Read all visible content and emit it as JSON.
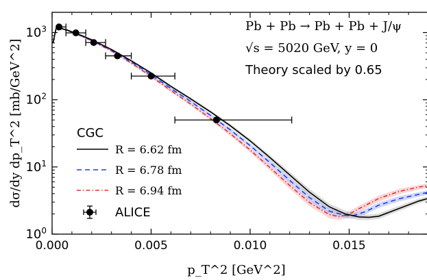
{
  "chart_data": {
    "type": "line",
    "title": "",
    "xlabel": "p_T^2 [GeV^2]",
    "ylabel": "dσ/dy dp_T^2 [mb/GeV^2]",
    "xlim": [
      0.0,
      0.019
    ],
    "ylim": [
      1,
      2000
    ],
    "yscale": "log",
    "grid": false,
    "x_ticks": [
      {
        "value": 0.0,
        "label": "0.000"
      },
      {
        "value": 0.005,
        "label": "0.005"
      },
      {
        "value": 0.01,
        "label": "0.010"
      },
      {
        "value": 0.015,
        "label": "0.015"
      }
    ],
    "y_ticks": [
      {
        "value": 1,
        "base": "10",
        "exp": "0"
      },
      {
        "value": 10,
        "base": "10",
        "exp": "1"
      },
      {
        "value": 100,
        "base": "10",
        "exp": "2"
      },
      {
        "value": 1000,
        "base": "10",
        "exp": "3"
      }
    ],
    "annotations": [
      "Pb + Pb → Pb + Pb + J/ψ",
      "√s = 5020 GeV, y = 0",
      "Theory scaled by 0.65"
    ],
    "legend": {
      "placement": "lower-left",
      "title": "CGC",
      "entries": [
        "R = 6.62 fm",
        "R = 6.78 fm",
        "R = 6.94 fm",
        "ALICE"
      ]
    },
    "series": [
      {
        "name": "R = 6.62 fm",
        "color": "#000000",
        "style": "solid",
        "band_color": "#bdbdbd",
        "x": [
          5e-05,
          0.0002,
          0.0004,
          0.0008,
          0.0015,
          0.002,
          0.003,
          0.004,
          0.005,
          0.006,
          0.007,
          0.008,
          0.009,
          0.01,
          0.011,
          0.012,
          0.013,
          0.014,
          0.0148,
          0.0155,
          0.016,
          0.0165,
          0.0175,
          0.0185,
          0.019
        ],
        "y": [
          700,
          1150,
          1160,
          1080,
          900,
          780,
          560,
          380,
          250,
          158,
          103,
          66,
          41,
          24.5,
          13.8,
          7.6,
          4.2,
          2.55,
          2.0,
          1.8,
          1.78,
          1.85,
          2.4,
          3.1,
          3.4
        ],
        "band_lo": [
          680,
          1120,
          1130,
          1050,
          875,
          758,
          544,
          368,
          241,
          151,
          97.8,
          62.4,
          38.5,
          22.8,
          12.6,
          6.8,
          3.7,
          2.25,
          1.78,
          1.62,
          1.62,
          1.68,
          2.2,
          2.85,
          3.15
        ],
        "band_hi": [
          720,
          1180,
          1190,
          1110,
          925,
          802,
          576,
          392,
          259,
          165,
          108,
          69.6,
          43.5,
          26.2,
          15.0,
          8.4,
          4.7,
          2.85,
          2.24,
          2.0,
          1.95,
          2.03,
          2.62,
          3.36,
          3.66
        ]
      },
      {
        "name": "R = 6.78 fm",
        "color": "#1f3be8",
        "style": "dashed",
        "band_color": "#a9b8f5",
        "x": [
          5e-05,
          0.0002,
          0.0004,
          0.0008,
          0.0015,
          0.002,
          0.003,
          0.004,
          0.005,
          0.006,
          0.007,
          0.008,
          0.009,
          0.01,
          0.011,
          0.012,
          0.013,
          0.014,
          0.0148,
          0.0152,
          0.0158,
          0.0165,
          0.0175,
          0.0185,
          0.019
        ],
        "y": [
          700,
          1150,
          1160,
          1075,
          890,
          765,
          545,
          365,
          236,
          147,
          94,
          58.5,
          35.5,
          20.8,
          11.6,
          6.3,
          3.5,
          2.2,
          1.9,
          1.88,
          2.15,
          2.7,
          3.35,
          3.9,
          4.2
        ],
        "band_lo": [
          680,
          1120,
          1130,
          1045,
          866,
          744,
          530,
          354,
          228,
          141,
          89.8,
          55.5,
          33.3,
          19.4,
          10.6,
          5.7,
          3.1,
          1.98,
          1.72,
          1.72,
          1.96,
          2.45,
          3.05,
          3.6,
          3.9
        ],
        "band_hi": [
          720,
          1180,
          1190,
          1105,
          914,
          786,
          560,
          376,
          244,
          153,
          98.2,
          61.5,
          37.7,
          22.2,
          12.6,
          6.9,
          3.9,
          2.42,
          2.08,
          2.04,
          2.34,
          2.95,
          3.65,
          4.2,
          4.5
        ]
      },
      {
        "name": "R = 6.94 fm",
        "color": "#e03030",
        "style": "dashdot",
        "band_color": "#f5b5b5",
        "x": [
          5e-05,
          0.0002,
          0.0004,
          0.0008,
          0.0015,
          0.002,
          0.003,
          0.004,
          0.005,
          0.006,
          0.007,
          0.008,
          0.009,
          0.01,
          0.011,
          0.012,
          0.013,
          0.014,
          0.0145,
          0.015,
          0.0155,
          0.0165,
          0.0175,
          0.0185,
          0.019
        ],
        "y": [
          700,
          1150,
          1160,
          1070,
          880,
          752,
          530,
          350,
          222,
          137,
          86,
          52.5,
          31.2,
          17.9,
          9.8,
          5.3,
          2.95,
          1.95,
          1.82,
          1.98,
          2.4,
          3.4,
          4.3,
          5.0,
          5.3
        ],
        "band_lo": [
          680,
          1120,
          1130,
          1040,
          856,
          731,
          515,
          339,
          213,
          130,
          81.5,
          49.5,
          29.0,
          16.5,
          8.9,
          4.7,
          2.6,
          1.72,
          1.62,
          1.76,
          2.15,
          3.05,
          3.9,
          4.6,
          4.9
        ],
        "band_hi": [
          720,
          1180,
          1190,
          1100,
          904,
          773,
          545,
          361,
          231,
          144,
          90.5,
          55.5,
          33.4,
          19.3,
          10.7,
          5.9,
          3.3,
          2.18,
          2.02,
          2.2,
          2.65,
          3.75,
          4.7,
          5.4,
          5.7
        ]
      }
    ],
    "alice_points": [
      {
        "x": 0.00035,
        "y": 1210,
        "xerr": [
          0.0003,
          0.0007
        ],
        "yerr": [
          1140,
          1290
        ]
      },
      {
        "x": 0.0012,
        "y": 990,
        "xerr": [
          0.0007,
          0.0017
        ],
        "yerr": [
          940,
          1040
        ]
      },
      {
        "x": 0.0021,
        "y": 710,
        "xerr": [
          0.0017,
          0.0027
        ],
        "yerr": [
          670,
          755
        ]
      },
      {
        "x": 0.0033,
        "y": 450,
        "xerr": [
          0.0027,
          0.004
        ],
        "yerr": [
          420,
          482
        ]
      },
      {
        "x": 0.005,
        "y": 225,
        "xerr": [
          0.004,
          0.0062
        ],
        "yerr": [
          208,
          243
        ]
      },
      {
        "x": 0.0083,
        "y": 50,
        "xerr": [
          0.0062,
          0.0121
        ],
        "yerr": [
          45,
          56
        ]
      }
    ]
  }
}
